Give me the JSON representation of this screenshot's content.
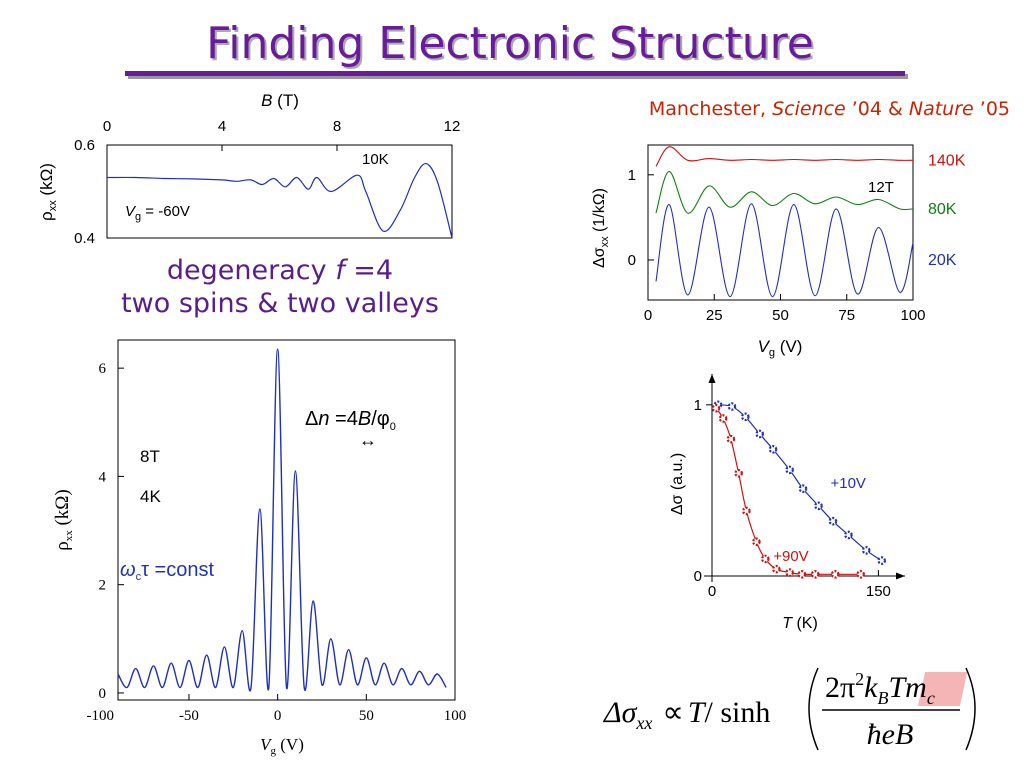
{
  "title": "Finding Electronic Structure",
  "citation": [
    "Manchester, ",
    "Science",
    " ’04 & ",
    "Nature",
    " ’05"
  ],
  "degeneracy": [
    [
      "degeneracy ",
      "f",
      " =4"
    ],
    [
      "two spins & two valleys"
    ]
  ],
  "formula": {
    "lhs": "Δσ",
    "lhs_sub": "xx",
    "rel": "∝",
    "T": "T",
    "div": "/ sinh",
    "num": [
      "2π",
      "2",
      "k",
      "B",
      "T",
      "m",
      "c"
    ],
    "den": "ħeB"
  },
  "chart_data": [
    {
      "type": "line",
      "xlabel": [
        "B",
        " (T)"
      ],
      "ylabel": [
        "ρ",
        "xx",
        "  (kΩ)"
      ],
      "annotations": [
        "10K",
        [
          "V",
          "g",
          " = -60V"
        ]
      ],
      "x": [
        0,
        1,
        2,
        3,
        4,
        4.5,
        5,
        5.4,
        5.8,
        6.2,
        6.6,
        7.0,
        7.3,
        7.8,
        8.7,
        9.0,
        9.6,
        10.2,
        10.7,
        11.1,
        11.5,
        12
      ],
      "series": [
        {
          "color": "#1f2fc0",
          "values": [
            0.53,
            0.53,
            0.528,
            0.527,
            0.525,
            0.522,
            0.525,
            0.515,
            0.528,
            0.51,
            0.53,
            0.505,
            0.53,
            0.5,
            0.535,
            0.5,
            0.415,
            0.46,
            0.53,
            0.56,
            0.52,
            0.4
          ]
        }
      ],
      "xlim": [
        0,
        12
      ],
      "ylim": [
        0.4,
        0.6
      ],
      "xticks": [
        0,
        4,
        8,
        12
      ],
      "yticks": [
        0.4,
        0.6
      ]
    },
    {
      "type": "line",
      "xlabel": [
        "V",
        "g",
        " (V)"
      ],
      "ylabel": [
        "ρ",
        "xx",
        "  (kΩ)"
      ],
      "annotations": [
        [
          "Δ",
          "n",
          " =4",
          "B",
          "/φ",
          "0"
        ],
        "↔",
        "8T",
        "4K",
        [
          "ω",
          "c",
          "τ =const"
        ]
      ],
      "x": [
        -90,
        -85,
        -80,
        -75,
        -70,
        -65,
        -60,
        -55,
        -50,
        -45,
        -40,
        -35,
        -30,
        -25,
        -20,
        -15,
        -10,
        -5,
        0,
        5,
        10,
        15,
        20,
        25,
        30,
        35,
        40,
        45,
        50,
        55,
        60,
        65,
        70,
        75,
        80,
        85,
        90,
        95
      ],
      "series": [
        {
          "color": "#1f2fc0",
          "values": [
            0.35,
            0.1,
            0.45,
            0.1,
            0.5,
            0.1,
            0.55,
            0.1,
            0.6,
            0.1,
            0.7,
            0.1,
            0.85,
            0.1,
            1.15,
            0.1,
            3.4,
            0.1,
            6.35,
            0.1,
            4.1,
            0.1,
            1.7,
            0.15,
            1.0,
            0.15,
            0.8,
            0.15,
            0.65,
            0.15,
            0.55,
            0.15,
            0.45,
            0.15,
            0.4,
            0.15,
            0.35,
            0.1
          ]
        }
      ],
      "xlim": [
        -90,
        100
      ],
      "ylim": [
        -0.13,
        6.52
      ],
      "xticks": [
        -100,
        -50,
        0,
        50,
        100
      ],
      "yticks": [
        0,
        2,
        4,
        6
      ]
    },
    {
      "type": "line",
      "xlabel": [
        "V",
        "g",
        " (V)"
      ],
      "ylabel": [
        "Δσ",
        "xx",
        " (1/kΩ)"
      ],
      "annotations": [
        "12T"
      ],
      "x": [
        3,
        8,
        15,
        23,
        31,
        39,
        47,
        55,
        63,
        71,
        79,
        87,
        95,
        100
      ],
      "series": [
        {
          "name": "140K",
          "color": "#d01010",
          "values": [
            1.1,
            1.33,
            1.17,
            1.19,
            1.17,
            1.18,
            1.17,
            1.18,
            1.17,
            1.18,
            1.17,
            1.18,
            1.17,
            1.17
          ]
        },
        {
          "name": "80K",
          "color": "#108010",
          "values": [
            0.55,
            1.04,
            0.55,
            0.87,
            0.62,
            0.8,
            0.64,
            0.78,
            0.66,
            0.74,
            0.65,
            0.71,
            0.6,
            0.6
          ]
        },
        {
          "name": "20K",
          "color": "#1f2fc0",
          "values": [
            -0.25,
            0.65,
            -0.41,
            0.62,
            -0.43,
            0.66,
            -0.43,
            0.65,
            -0.42,
            0.6,
            -0.4,
            0.38,
            -0.38,
            0.2
          ]
        }
      ],
      "xlim": [
        0,
        100
      ],
      "ylim": [
        -0.47,
        1.35
      ],
      "xticks": [
        0,
        25,
        50,
        75,
        100
      ],
      "yticks": [
        0,
        1
      ]
    },
    {
      "type": "scatter",
      "xlabel": [
        "T",
        " (K)"
      ],
      "ylabel": [
        "Δσ (a.u.)"
      ],
      "series": [
        {
          "name": "+10V",
          "color": "#1f2fc0",
          "x": [
            5.4,
            18,
            30,
            43,
            55,
            70,
            82,
            96,
            109,
            123,
            139,
            153
          ],
          "values": [
            1.0,
            0.99,
            0.93,
            0.83,
            0.74,
            0.62,
            0.51,
            0.41,
            0.32,
            0.24,
            0.15,
            0.09
          ]
        },
        {
          "name": "+90V",
          "color": "#d01010",
          "x": [
            3.6,
            10,
            17,
            24,
            31,
            40,
            48,
            58,
            70,
            81,
            93,
            111,
            134
          ],
          "values": [
            0.98,
            0.92,
            0.8,
            0.6,
            0.38,
            0.2,
            0.1,
            0.04,
            0.02,
            0.01,
            0.01,
            0.01,
            0.01
          ]
        }
      ],
      "xlim": [
        0,
        174
      ],
      "ylim": [
        0,
        1.18
      ],
      "xticks": [
        0,
        150
      ],
      "yticks": [
        0,
        1
      ]
    }
  ]
}
